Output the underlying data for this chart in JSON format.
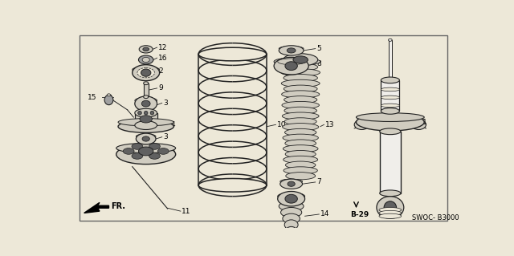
{
  "bg_color": "#ede8d8",
  "border_color": "#444444",
  "line_color": "#222222",
  "part_fill": "#d0ccc0",
  "mid_fill": "#a0a0a0",
  "dark_fill": "#606060",
  "white_fill": "#f0eeea",
  "code_text": "SWOC- B3000",
  "ref_text": "B-29",
  "fr_text": "FR.",
  "fig_width": 6.4,
  "fig_height": 3.19,
  "dpi": 100
}
